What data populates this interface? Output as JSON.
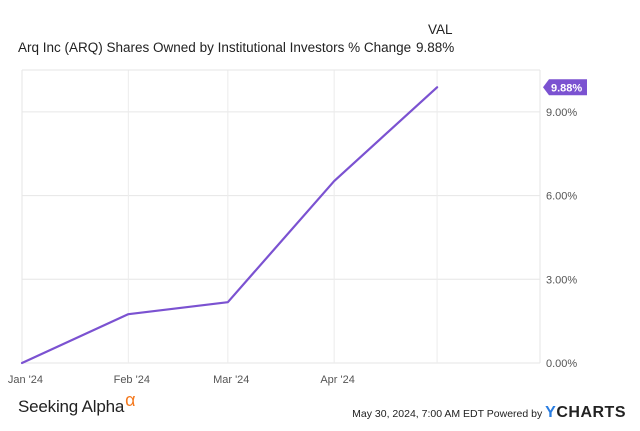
{
  "header": {
    "title": "Arq Inc (ARQ) Shares Owned by Institutional Investors % Change",
    "val_label": "VAL",
    "val_value": "9.88%"
  },
  "footer": {
    "brand": "Seeking Alpha",
    "brand_symbol": "α",
    "timestamp": "May 30, 2024, 7:00 AM EDT Powered by",
    "ycharts_y": "Y",
    "ycharts_rest": "CHARTS"
  },
  "chart_data": {
    "type": "line",
    "title": "Arq Inc (ARQ) Shares Owned by Institutional Investors % Change",
    "xlabel": "",
    "ylabel": "",
    "x_ticks": [
      "Jan '24",
      "Feb '24",
      "Mar '24",
      "Apr '24"
    ],
    "y_ticks": [
      "0.00%",
      "3.00%",
      "6.00%",
      "9.00%"
    ],
    "ylim": [
      0,
      10.5
    ],
    "grid": true,
    "line_color": "#7b52d1",
    "series": [
      {
        "x": [
          "2023-12-31",
          "2024-01-31",
          "2024-02-29",
          "2024-03-31",
          "2024-04-30"
        ],
        "values": [
          0.0,
          1.75,
          2.18,
          6.52,
          9.88
        ]
      }
    ],
    "last_value_label": "9.88%"
  }
}
